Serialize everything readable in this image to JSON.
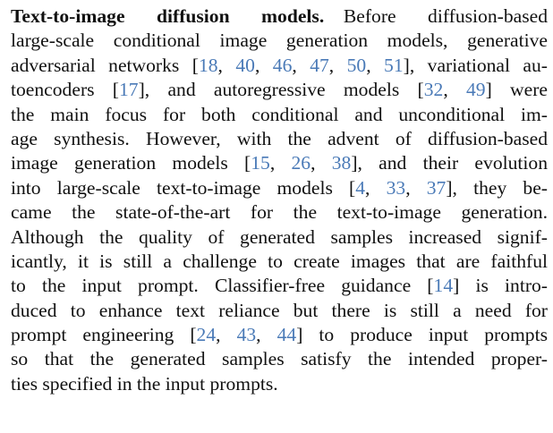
{
  "paragraph": {
    "heading": "Text-to-image diffusion models.",
    "lines": [
      [
        {
          "t": "Before diffusion-based"
        }
      ],
      [
        {
          "t": "large-scale conditional image generation models, generative"
        }
      ],
      [
        {
          "t": "adversarial networks ["
        },
        {
          "t": "18",
          "c": 1
        },
        {
          "t": ", "
        },
        {
          "t": "40",
          "c": 1
        },
        {
          "t": ", "
        },
        {
          "t": "46",
          "c": 1
        },
        {
          "t": ", "
        },
        {
          "t": "47",
          "c": 1
        },
        {
          "t": ", "
        },
        {
          "t": "50",
          "c": 1
        },
        {
          "t": ", "
        },
        {
          "t": "51",
          "c": 1
        },
        {
          "t": "], variational au-"
        }
      ],
      [
        {
          "t": "toencoders ["
        },
        {
          "t": "17",
          "c": 1
        },
        {
          "t": "], and autoregressive models ["
        },
        {
          "t": "32",
          "c": 1
        },
        {
          "t": ", "
        },
        {
          "t": "49",
          "c": 1
        },
        {
          "t": "] were"
        }
      ],
      [
        {
          "t": "the main focus for both conditional and unconditional im-"
        }
      ],
      [
        {
          "t": "age synthesis. However, with the advent of diffusion-based"
        }
      ],
      [
        {
          "t": "image generation models ["
        },
        {
          "t": "15",
          "c": 1
        },
        {
          "t": ", "
        },
        {
          "t": "26",
          "c": 1
        },
        {
          "t": ", "
        },
        {
          "t": "38",
          "c": 1
        },
        {
          "t": "], and their evolution"
        }
      ],
      [
        {
          "t": "into large-scale text-to-image models ["
        },
        {
          "t": "4",
          "c": 1
        },
        {
          "t": ", "
        },
        {
          "t": "33",
          "c": 1
        },
        {
          "t": ", "
        },
        {
          "t": "37",
          "c": 1
        },
        {
          "t": "], they be-"
        }
      ],
      [
        {
          "t": "came the state-of-the-art for the text-to-image generation."
        }
      ],
      [
        {
          "t": "Although the quality of generated samples increased signif-"
        }
      ],
      [
        {
          "t": "icantly, it is still a challenge to create images that are faithful"
        }
      ],
      [
        {
          "t": "to the input prompt. Classifier-free guidance ["
        },
        {
          "t": "14",
          "c": 1
        },
        {
          "t": "] is intro-"
        }
      ],
      [
        {
          "t": "duced to enhance text reliance but there is still a need for"
        }
      ],
      [
        {
          "t": "prompt engineering ["
        },
        {
          "t": "24",
          "c": 1
        },
        {
          "t": ", "
        },
        {
          "t": "43",
          "c": 1
        },
        {
          "t": ", "
        },
        {
          "t": "44",
          "c": 1
        },
        {
          "t": "] to produce input prompts"
        }
      ],
      [
        {
          "t": "so that the generated samples satisfy the intended proper-"
        }
      ],
      [
        {
          "t": "ties specified in the input prompts."
        }
      ]
    ]
  },
  "colors": {
    "text": "#111111",
    "citation_link": "#4a7ab7",
    "background": "#ffffff"
  }
}
